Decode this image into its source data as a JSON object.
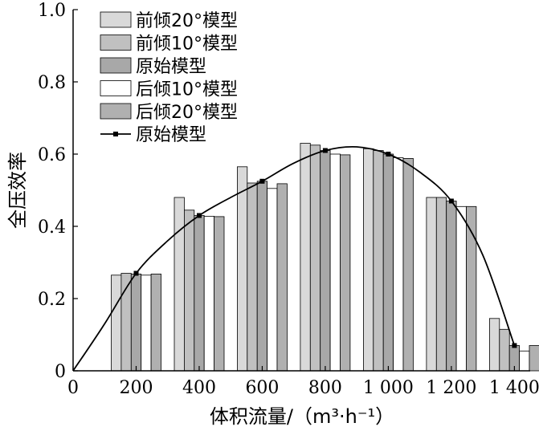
{
  "chart_data": {
    "type": "bar",
    "title": "",
    "xlabel": "体积流量/（m³·h⁻¹）",
    "ylabel": "全压效率",
    "xlim": [
      0,
      1450
    ],
    "ylim": [
      0,
      1.0
    ],
    "x_ticks": [
      0,
      200,
      400,
      600,
      800,
      1000,
      1200,
      1400
    ],
    "x_tick_labels": [
      "0",
      "200",
      "400",
      "600",
      "800",
      "1 000",
      "1 200",
      "1 400"
    ],
    "y_ticks": [
      0,
      0.2,
      0.4,
      0.6,
      0.8,
      1.0
    ],
    "y_tick_labels": [
      "0",
      "0.2",
      "0.4",
      "0.6",
      "0.8",
      "1.0"
    ],
    "legend_position": "top-left",
    "grid": false,
    "groups_x": [
      200,
      400,
      600,
      800,
      1000,
      1200,
      1400
    ],
    "series": [
      {
        "name": "前倾20°模型",
        "color": "#d9d9d9",
        "values": [
          0.265,
          0.48,
          0.565,
          0.63,
          0.615,
          0.48,
          0.145
        ]
      },
      {
        "name": "前倾10°模型",
        "color": "#c0c0c0",
        "values": [
          0.27,
          0.445,
          0.52,
          0.625,
          0.61,
          0.48,
          0.115
        ]
      },
      {
        "name": "原始模型",
        "color": "#a8a8a8",
        "values": [
          0.268,
          0.43,
          0.525,
          0.61,
          0.6,
          0.47,
          0.07
        ]
      },
      {
        "name": "后倾10°模型",
        "color": "#ffffff",
        "values": [
          0.265,
          0.428,
          0.505,
          0.6,
          0.59,
          0.455,
          0.055
        ]
      },
      {
        "name": "后倾20°模型",
        "color": "#b0b0b0",
        "values": [
          0.268,
          0.427,
          0.518,
          0.598,
          0.588,
          0.455,
          0.07
        ]
      }
    ],
    "line": {
      "name": "原始模型",
      "points": [
        [
          0,
          0
        ],
        [
          100,
          0.13
        ],
        [
          200,
          0.27
        ],
        [
          300,
          0.36
        ],
        [
          400,
          0.43
        ],
        [
          500,
          0.48
        ],
        [
          600,
          0.525
        ],
        [
          700,
          0.575
        ],
        [
          800,
          0.61
        ],
        [
          900,
          0.62
        ],
        [
          1000,
          0.6
        ],
        [
          1100,
          0.55
        ],
        [
          1200,
          0.47
        ],
        [
          1300,
          0.32
        ],
        [
          1400,
          0.07
        ]
      ],
      "markers_x": [
        200,
        400,
        600,
        800,
        1000,
        1200,
        1400
      ]
    }
  }
}
